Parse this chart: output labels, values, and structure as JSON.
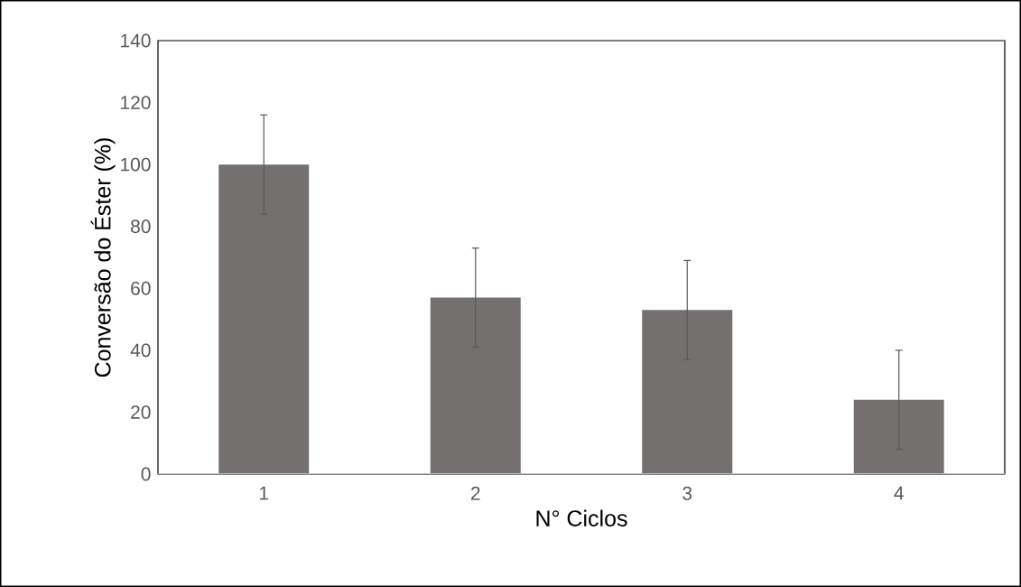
{
  "chart_data": {
    "type": "bar",
    "xlabel": "N° Ciclos",
    "ylabel": "Conversão do Éster (%)",
    "categories": [
      "1",
      "2",
      "3",
      "4"
    ],
    "values": [
      100,
      57,
      53,
      24
    ],
    "errors": [
      16,
      16,
      16,
      16
    ],
    "color": "#747070",
    "ylim": [
      0,
      140
    ],
    "yticks": [
      0,
      20,
      40,
      60,
      80,
      100,
      120,
      140
    ],
    "grid": false
  }
}
